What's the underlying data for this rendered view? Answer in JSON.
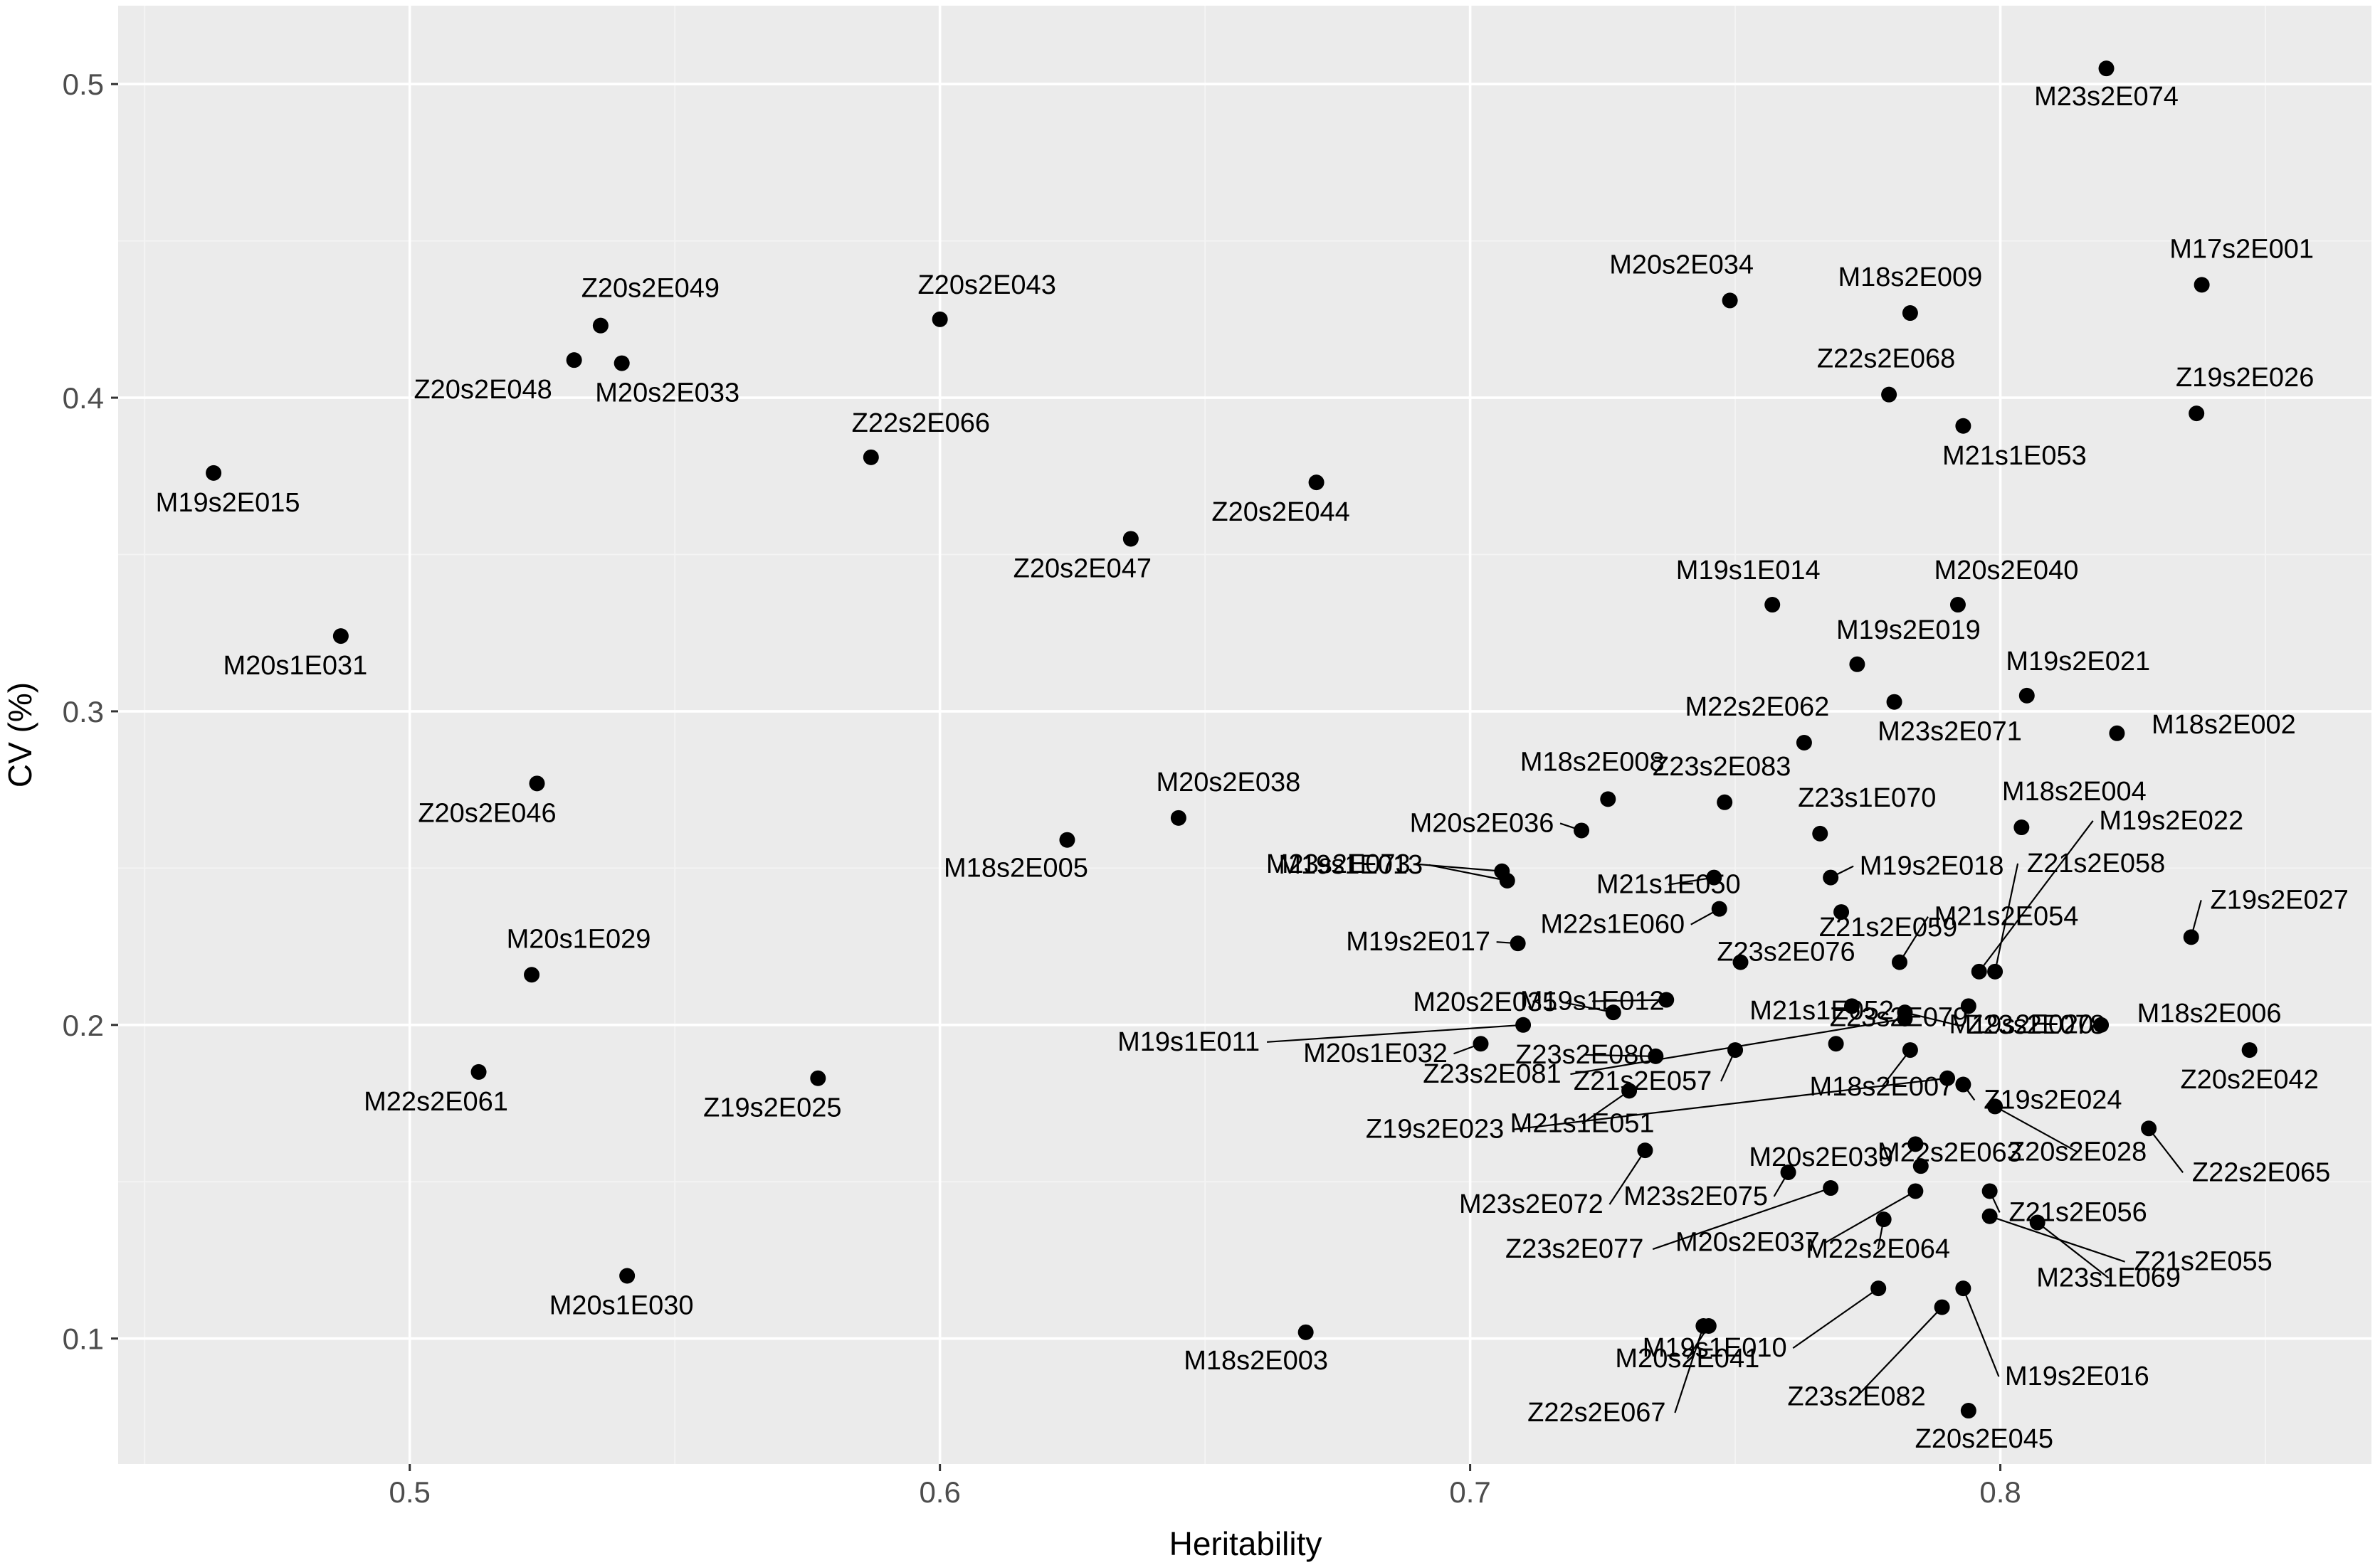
{
  "chart_data": {
    "type": "scatter",
    "xlabel": "Heritability",
    "ylabel": "CV (%)",
    "xlim": [
      0.445,
      0.87
    ],
    "ylim": [
      0.06,
      0.525
    ],
    "x_ticks": [
      0.5,
      0.6,
      0.7,
      0.8
    ],
    "x_tick_labels": [
      "0.5",
      "0.6",
      "0.7",
      "0.8"
    ],
    "y_ticks": [
      0.1,
      0.2,
      0.3,
      0.4,
      0.5
    ],
    "y_tick_labels": [
      "0.1",
      "0.2",
      "0.3",
      "0.4",
      "0.5"
    ],
    "grid": true,
    "legend": "none",
    "points": [
      {
        "label": "M23s2E074",
        "x": 0.82,
        "y": 0.505
      },
      {
        "label": "M17s2E001",
        "x": 0.838,
        "y": 0.436
      },
      {
        "label": "M20s2E034",
        "x": 0.749,
        "y": 0.431
      },
      {
        "label": "M18s2E009",
        "x": 0.783,
        "y": 0.427
      },
      {
        "label": "Z20s2E049",
        "x": 0.536,
        "y": 0.423
      },
      {
        "label": "Z20s2E043",
        "x": 0.6,
        "y": 0.425
      },
      {
        "label": "Z20s2E048",
        "x": 0.531,
        "y": 0.412
      },
      {
        "label": "M20s2E033",
        "x": 0.54,
        "y": 0.411
      },
      {
        "label": "Z22s2E068",
        "x": 0.779,
        "y": 0.401
      },
      {
        "label": "Z19s2E026",
        "x": 0.837,
        "y": 0.395
      },
      {
        "label": "M21s1E053",
        "x": 0.793,
        "y": 0.391
      },
      {
        "label": "Z22s2E066",
        "x": 0.587,
        "y": 0.381
      },
      {
        "label": "M19s2E015",
        "x": 0.463,
        "y": 0.376
      },
      {
        "label": "Z20s2E044",
        "x": 0.671,
        "y": 0.373
      },
      {
        "label": "Z20s2E047",
        "x": 0.636,
        "y": 0.355
      },
      {
        "label": "M19s1E014",
        "x": 0.757,
        "y": 0.334
      },
      {
        "label": "M20s2E040",
        "x": 0.792,
        "y": 0.334
      },
      {
        "label": "M20s1E031",
        "x": 0.487,
        "y": 0.324
      },
      {
        "label": "M19s2E019",
        "x": 0.773,
        "y": 0.315
      },
      {
        "label": "M19s2E021",
        "x": 0.805,
        "y": 0.305
      },
      {
        "label": "M23s2E071",
        "x": 0.78,
        "y": 0.303
      },
      {
        "label": "M18s2E002",
        "x": 0.822,
        "y": 0.293
      },
      {
        "label": "M22s2E062",
        "x": 0.763,
        "y": 0.29
      },
      {
        "label": "Z20s2E046",
        "x": 0.524,
        "y": 0.277
      },
      {
        "label": "M18s2E008",
        "x": 0.726,
        "y": 0.272
      },
      {
        "label": "Z23s2E083",
        "x": 0.748,
        "y": 0.271
      },
      {
        "label": "M20s2E038",
        "x": 0.645,
        "y": 0.266
      },
      {
        "label": "M18s2E004",
        "x": 0.804,
        "y": 0.263
      },
      {
        "label": "M20s2E036",
        "x": 0.721,
        "y": 0.262
      },
      {
        "label": "Z23s1E070",
        "x": 0.766,
        "y": 0.261
      },
      {
        "label": "M18s2E005",
        "x": 0.624,
        "y": 0.259
      },
      {
        "label": "M23s2E073",
        "x": 0.706,
        "y": 0.249
      },
      {
        "label": "M19s1E013",
        "x": 0.707,
        "y": 0.246
      },
      {
        "label": "M21s1E050",
        "x": 0.746,
        "y": 0.247
      },
      {
        "label": "M19s2E018",
        "x": 0.768,
        "y": 0.247
      },
      {
        "label": "M22s1E060",
        "x": 0.747,
        "y": 0.237
      },
      {
        "label": "Z21s2E059",
        "x": 0.77,
        "y": 0.236
      },
      {
        "label": "M19s2E017",
        "x": 0.709,
        "y": 0.226
      },
      {
        "label": "Z19s2E027",
        "x": 0.836,
        "y": 0.228
      },
      {
        "label": "Z23s2E076",
        "x": 0.751,
        "y": 0.22
      },
      {
        "label": "M21s2E054",
        "x": 0.781,
        "y": 0.22
      },
      {
        "label": "M19s2E022",
        "x": 0.796,
        "y": 0.217
      },
      {
        "label": "Z21s2E058",
        "x": 0.799,
        "y": 0.217
      },
      {
        "label": "M19s1E012",
        "x": 0.737,
        "y": 0.208
      },
      {
        "label": "Z23s2E078",
        "x": 0.782,
        "y": 0.204
      },
      {
        "label": "M20s1E029",
        "x": 0.523,
        "y": 0.216
      },
      {
        "label": "M20s2E035",
        "x": 0.727,
        "y": 0.204
      },
      {
        "label": "Z23s2E079",
        "x": 0.772,
        "y": 0.206
      },
      {
        "label": "Z23s2E081",
        "x": 0.782,
        "y": 0.202
      },
      {
        "label": "M18s2E006",
        "x": 0.819,
        "y": 0.2
      },
      {
        "label": "M19s1E011",
        "x": 0.71,
        "y": 0.2
      },
      {
        "label": "M19s2E020",
        "x": 0.794,
        "y": 0.206
      },
      {
        "label": "M20s1E032",
        "x": 0.702,
        "y": 0.194
      },
      {
        "label": "Z20s2E042",
        "x": 0.847,
        "y": 0.192
      },
      {
        "label": "M21s1E052",
        "x": 0.769,
        "y": 0.194
      },
      {
        "label": "M18s2E007",
        "x": 0.783,
        "y": 0.192
      },
      {
        "label": "Z21s2E057",
        "x": 0.75,
        "y": 0.192
      },
      {
        "label": "Z23s2E080",
        "x": 0.735,
        "y": 0.19
      },
      {
        "label": "M22s2E061",
        "x": 0.513,
        "y": 0.185
      },
      {
        "label": "Z19s2E025",
        "x": 0.577,
        "y": 0.183
      },
      {
        "label": "Z19s2E023",
        "x": 0.79,
        "y": 0.183
      },
      {
        "label": "Z19s2E024",
        "x": 0.793,
        "y": 0.181
      },
      {
        "label": "M21s1E051",
        "x": 0.73,
        "y": 0.179
      },
      {
        "label": "Z20s2E028",
        "x": 0.799,
        "y": 0.174
      },
      {
        "label": "Z22s2E065",
        "x": 0.828,
        "y": 0.167
      },
      {
        "label": "M23s2E072",
        "x": 0.733,
        "y": 0.16
      },
      {
        "label": "M22s2E063",
        "x": 0.784,
        "y": 0.162
      },
      {
        "label": "M20s2E039",
        "x": 0.785,
        "y": 0.155
      },
      {
        "label": "M23s2E075",
        "x": 0.76,
        "y": 0.153
      },
      {
        "label": "Z23s2E077",
        "x": 0.768,
        "y": 0.148
      },
      {
        "label": "M20s2E037",
        "x": 0.784,
        "y": 0.147
      },
      {
        "label": "Z21s2E056",
        "x": 0.798,
        "y": 0.147
      },
      {
        "label": "M22s2E064",
        "x": 0.778,
        "y": 0.138
      },
      {
        "label": "Z21s2E055",
        "x": 0.798,
        "y": 0.139
      },
      {
        "label": "M23s1E069",
        "x": 0.807,
        "y": 0.137
      },
      {
        "label": "M20s1E030",
        "x": 0.541,
        "y": 0.12
      },
      {
        "label": "M19s1E010",
        "x": 0.777,
        "y": 0.116
      },
      {
        "label": "M19s2E016",
        "x": 0.793,
        "y": 0.116
      },
      {
        "label": "Z23s2E082",
        "x": 0.789,
        "y": 0.11
      },
      {
        "label": "M20s2E041",
        "x": 0.745,
        "y": 0.104
      },
      {
        "label": "M18s2E003",
        "x": 0.669,
        "y": 0.102
      },
      {
        "label": "Z22s2E067",
        "x": 0.744,
        "y": 0.104
      },
      {
        "label": "Z20s2E045",
        "x": 0.794,
        "y": 0.077
      }
    ]
  }
}
